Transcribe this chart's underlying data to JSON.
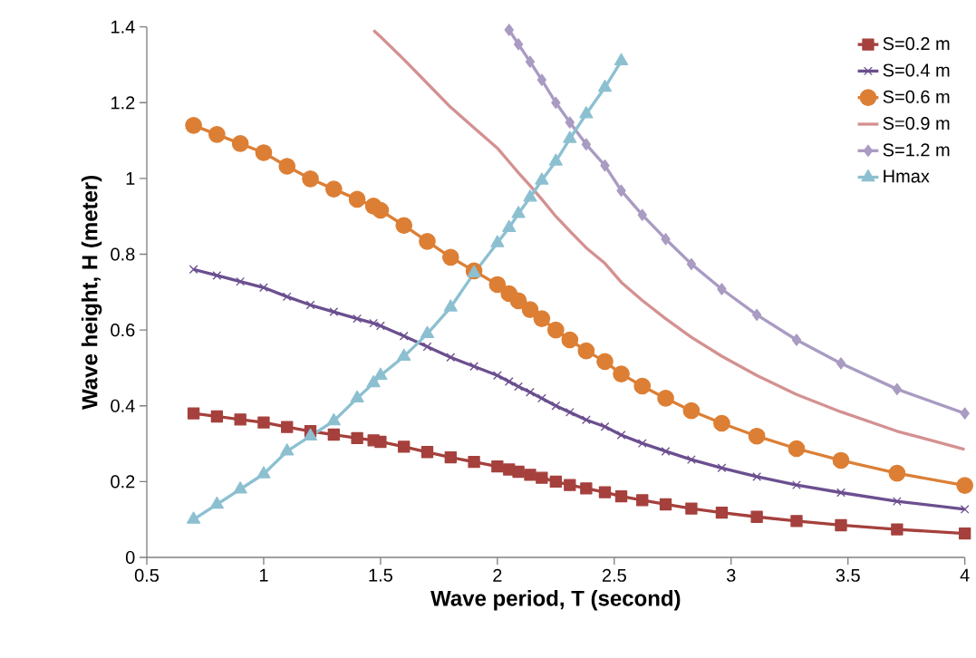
{
  "chart_data": {
    "type": "line",
    "xlabel": "Wave period, T (second)",
    "ylabel": "Wave height, H (meter)",
    "xlim": [
      0.5,
      4
    ],
    "ylim": [
      0,
      1.4
    ],
    "xticks": [
      0.5,
      1,
      1.5,
      2,
      2.5,
      3,
      3.5,
      4
    ],
    "yticks": [
      0,
      0.2,
      0.4,
      0.6,
      0.8,
      1,
      1.2,
      1.4
    ],
    "legend": "top right",
    "x": [
      0.7,
      0.8,
      0.9,
      1.0,
      1.1,
      1.2,
      1.3,
      1.4,
      1.47,
      1.5,
      1.6,
      1.7,
      1.8,
      1.9,
      2.0,
      2.05,
      2.09,
      2.14,
      2.19,
      2.25,
      2.31,
      2.38,
      2.46,
      2.53,
      2.62,
      2.72,
      2.83,
      2.96,
      3.11,
      3.28,
      3.47,
      3.71,
      4.0
    ],
    "series": [
      {
        "name": "S=0.2 m",
        "color": "#a5403c",
        "marker": "square",
        "values": [
          0.38,
          0.372,
          0.364,
          0.356,
          0.344,
          0.333,
          0.324,
          0.315,
          0.309,
          0.305,
          0.292,
          0.278,
          0.264,
          0.252,
          0.24,
          0.232,
          0.226,
          0.218,
          0.21,
          0.2,
          0.191,
          0.182,
          0.172,
          0.161,
          0.151,
          0.14,
          0.129,
          0.118,
          0.107,
          0.096,
          0.085,
          0.074,
          0.063
        ]
      },
      {
        "name": "S=0.4 m",
        "color": "#6b4f8f",
        "marker": "cross",
        "values": [
          0.76,
          0.744,
          0.728,
          0.712,
          0.688,
          0.666,
          0.648,
          0.63,
          0.618,
          0.611,
          0.584,
          0.556,
          0.528,
          0.504,
          0.48,
          0.464,
          0.451,
          0.436,
          0.42,
          0.4,
          0.383,
          0.363,
          0.345,
          0.323,
          0.301,
          0.28,
          0.258,
          0.236,
          0.213,
          0.191,
          0.171,
          0.148,
          0.127
        ]
      },
      {
        "name": "S=0.6 m",
        "color": "#dc7f35",
        "marker": "circle",
        "values": [
          1.14,
          1.116,
          1.092,
          1.068,
          1.032,
          0.999,
          0.972,
          0.945,
          0.927,
          0.916,
          0.876,
          0.834,
          0.792,
          0.756,
          0.72,
          0.696,
          0.677,
          0.654,
          0.63,
          0.6,
          0.574,
          0.545,
          0.517,
          0.484,
          0.452,
          0.42,
          0.387,
          0.354,
          0.32,
          0.287,
          0.256,
          0.222,
          0.19
        ]
      },
      {
        "name": "S=0.9 m",
        "color": "#d49191",
        "marker": "none",
        "values": [
          null,
          null,
          null,
          null,
          null,
          null,
          null,
          null,
          1.391,
          1.374,
          1.314,
          1.251,
          1.188,
          1.134,
          1.08,
          1.044,
          1.015,
          0.981,
          0.945,
          0.9,
          0.861,
          0.817,
          0.776,
          0.726,
          0.678,
          0.63,
          0.581,
          0.531,
          0.48,
          0.43,
          0.384,
          0.333,
          0.285
        ]
      },
      {
        "name": "S=1.2 m",
        "color": "#a99bc2",
        "marker": "diamond",
        "values": [
          null,
          null,
          null,
          null,
          null,
          null,
          null,
          null,
          null,
          null,
          null,
          null,
          null,
          null,
          null,
          1.392,
          1.354,
          1.308,
          1.26,
          1.2,
          1.148,
          1.09,
          1.034,
          0.968,
          0.904,
          0.84,
          0.774,
          0.708,
          0.64,
          0.574,
          0.512,
          0.444,
          0.38
        ]
      },
      {
        "name": "Hmax",
        "color": "#8cc0d1",
        "marker": "triangle",
        "values": [
          0.1,
          0.14,
          0.18,
          0.22,
          0.28,
          0.32,
          0.36,
          0.42,
          0.46,
          0.48,
          0.53,
          0.59,
          0.66,
          0.75,
          0.83,
          0.87,
          0.907,
          0.95,
          0.995,
          1.045,
          1.105,
          1.17,
          1.24,
          1.31,
          null,
          null,
          null,
          null,
          null,
          null,
          null,
          null,
          null
        ]
      }
    ]
  }
}
